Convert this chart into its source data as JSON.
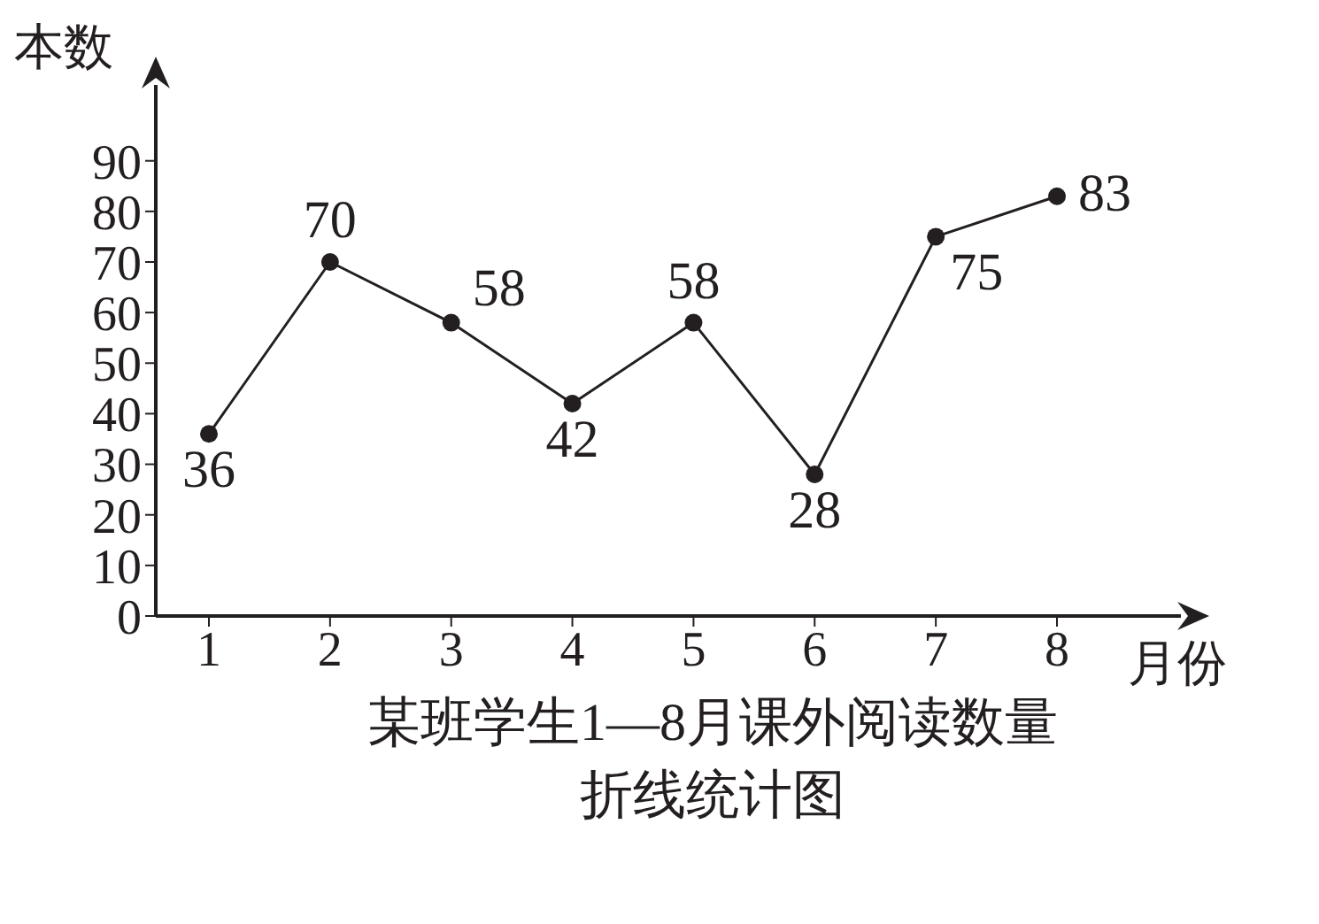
{
  "chart_data": {
    "type": "line",
    "title": "某班学生1—8月课外阅读数量",
    "subtitle": "折线统计图",
    "xlabel": "月份",
    "ylabel": "本数",
    "categories": [
      "1",
      "2",
      "3",
      "4",
      "5",
      "6",
      "7",
      "8"
    ],
    "series": [
      {
        "color": "#231f20",
        "values": [
          36,
          70,
          58,
          42,
          58,
          28,
          75,
          83
        ]
      }
    ],
    "ylim": [
      0,
      105
    ],
    "yticks": [
      0,
      10,
      20,
      30,
      40,
      50,
      60,
      70,
      80,
      90
    ],
    "grid": false,
    "legend": false,
    "marker": "circle",
    "line_style": "solid",
    "data_labels": true
  }
}
